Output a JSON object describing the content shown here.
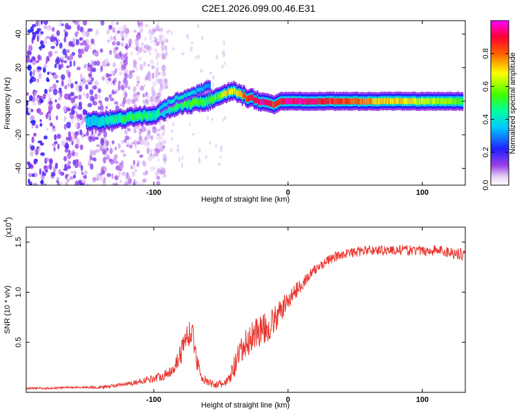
{
  "figure_title": "C2E1.2026.099.00.46.E31",
  "chart_data": [
    {
      "type": "heatmap",
      "title": "C2E1.2026.099.00.46.E31",
      "xlabel": "Height of straight line (km)",
      "ylabel": "Frequency (Hz)",
      "xlim": [
        -195,
        132
      ],
      "ylim": [
        -50,
        48
      ],
      "xticks": [
        -100,
        0,
        100
      ],
      "xtick_labels": [
        "-100",
        "0",
        "100"
      ],
      "yticks": [
        -40,
        -20,
        0,
        20,
        40
      ],
      "ytick_labels": [
        "-40",
        "-20",
        "0",
        "20",
        "40"
      ],
      "colorbar": {
        "label": "Normalized spectral amplitude",
        "range": [
          0.0,
          1.0
        ],
        "ticks": [
          0.0,
          0.2,
          0.4,
          0.6,
          0.8
        ],
        "tick_labels": [
          "0.0",
          "0.2",
          "0.4",
          "0.6",
          "0.8"
        ],
        "colormap": "white-purple-blue-cyan-green-yellow-red-magenta"
      },
      "ridge": {
        "description": "main spectral ridge frequency vs height",
        "x": [
          -150,
          -140,
          -130,
          -120,
          -110,
          -100,
          -90,
          -80,
          -70,
          -60,
          -55,
          -50,
          -45,
          -40,
          -35,
          -30,
          -25,
          -20,
          -15,
          -10,
          -5,
          0,
          10,
          20,
          40,
          60,
          80,
          100,
          120,
          130
        ],
        "freq": [
          -12,
          -12,
          -11,
          -10,
          -9,
          -8,
          -5,
          -2,
          -1,
          0,
          2,
          3,
          5,
          6,
          4,
          2,
          1,
          0,
          -1,
          -2,
          0,
          0,
          0,
          0,
          0,
          0,
          0,
          0,
          0,
          0
        ],
        "amplitude": [
          0.35,
          0.4,
          0.45,
          0.5,
          0.5,
          0.45,
          0.4,
          0.5,
          0.55,
          0.5,
          0.55,
          0.6,
          0.7,
          0.65,
          0.75,
          0.85,
          0.9,
          0.95,
          0.9,
          0.85,
          0.9,
          0.95,
          0.95,
          0.9,
          0.85,
          0.75,
          0.7,
          0.65,
          0.6,
          0.55
        ]
      },
      "ridge_branch": {
        "description": "secondary upper branch",
        "x": [
          -95,
          -85,
          -75,
          -65,
          -58
        ],
        "freq": [
          -4,
          1,
          4,
          7,
          10
        ],
        "amplitude": [
          0.35,
          0.4,
          0.4,
          0.35,
          0.3
        ]
      },
      "noise_region": {
        "x_range": [
          -195,
          -120
        ],
        "freq_range": [
          -50,
          48
        ],
        "amplitude": 0.15
      }
    },
    {
      "type": "line",
      "xlabel": "Height of straight line (km)",
      "ylabel": "SNR (10 * v/v)",
      "y_multiplier": "(x10",
      "y_multiplier_exponent": "4",
      "y_multiplier_close": ")",
      "xlim": [
        -195,
        132
      ],
      "ylim": [
        0,
        1.65
      ],
      "xticks": [
        -100,
        0,
        100
      ],
      "xtick_labels": [
        "-100",
        "0",
        "100"
      ],
      "yticks": [
        0.5,
        1.0,
        1.5
      ],
      "ytick_labels": [
        "0.5",
        "1.0",
        "1.5"
      ],
      "series": [
        {
          "name": "SNR",
          "color": "#e8342e",
          "x": [
            -195,
            -180,
            -160,
            -140,
            -120,
            -110,
            -100,
            -90,
            -85,
            -80,
            -76,
            -72,
            -70,
            -68,
            -64,
            -60,
            -55,
            -50,
            -45,
            -40,
            -35,
            -30,
            -25,
            -20,
            -15,
            -10,
            -5,
            0,
            5,
            10,
            15,
            20,
            25,
            30,
            40,
            50,
            60,
            70,
            80,
            90,
            100,
            110,
            120,
            130
          ],
          "y": [
            0.04,
            0.04,
            0.05,
            0.05,
            0.08,
            0.11,
            0.14,
            0.18,
            0.25,
            0.38,
            0.55,
            0.62,
            0.5,
            0.32,
            0.15,
            0.1,
            0.08,
            0.08,
            0.1,
            0.25,
            0.4,
            0.5,
            0.6,
            0.62,
            0.65,
            0.72,
            0.82,
            0.92,
            1.0,
            1.08,
            1.15,
            1.22,
            1.28,
            1.32,
            1.38,
            1.4,
            1.42,
            1.42,
            1.42,
            1.42,
            1.41,
            1.42,
            1.4,
            1.38
          ],
          "noise_amplitude": [
            0.01,
            0.01,
            0.01,
            0.015,
            0.02,
            0.03,
            0.04,
            0.05,
            0.07,
            0.12,
            0.14,
            0.12,
            0.11,
            0.09,
            0.05,
            0.04,
            0.04,
            0.04,
            0.06,
            0.12,
            0.15,
            0.16,
            0.17,
            0.16,
            0.15,
            0.14,
            0.12,
            0.1,
            0.08,
            0.07,
            0.06,
            0.06,
            0.05,
            0.05,
            0.05,
            0.05,
            0.05,
            0.05,
            0.05,
            0.05,
            0.05,
            0.06,
            0.06,
            0.06
          ]
        }
      ]
    }
  ]
}
